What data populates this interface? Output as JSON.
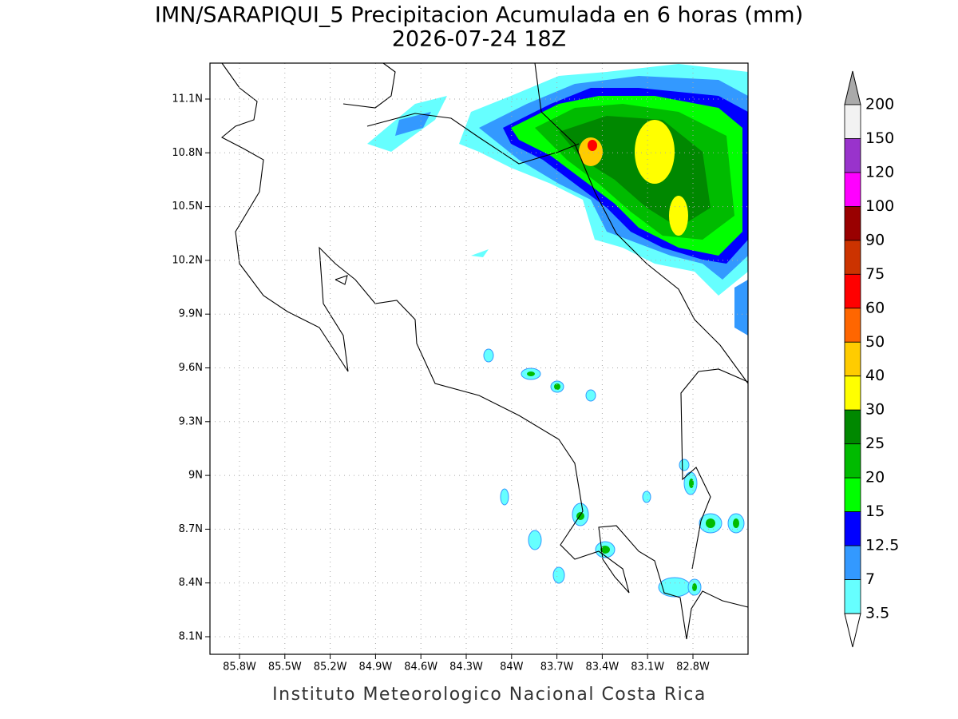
{
  "header": {
    "title": "IMN/SARAPIQUI_5 Precipitacion Acumulada en 6 horas (mm)",
    "subtitle": "2026-07-24 18Z"
  },
  "map": {
    "lat_labels": [
      "11.1N",
      "10.8N",
      "10.5N",
      "10.2N",
      "9.9N",
      "9.6N",
      "9.3N",
      "9N",
      "8.7N",
      "8.4N",
      "8.1N"
    ],
    "lon_labels": [
      "85.8W",
      "85.5W",
      "85.2W",
      "84.9W",
      "84.6W",
      "84.3W",
      "84W",
      "83.7W",
      "83.4W",
      "83.1W",
      "82.8W"
    ]
  },
  "colorbar": {
    "levels": [
      200,
      150,
      120,
      100,
      90,
      75,
      60,
      50,
      40,
      30,
      25,
      20,
      15,
      12.5,
      7,
      3.5
    ],
    "colors": [
      "#f2f2f2",
      "#9933cc",
      "#ff00ff",
      "#990000",
      "#cc3300",
      "#ff0000",
      "#ff6600",
      "#ffcc00",
      "#ffff00",
      "#008800",
      "#00bb00",
      "#00ff00",
      "#0000ff",
      "#3399ff",
      "#66ffff"
    ],
    "over_color": "#aaaaaa",
    "under_color": "#ffffff"
  },
  "footer": "Instituto Meteorologico Nacional Costa Rica"
}
